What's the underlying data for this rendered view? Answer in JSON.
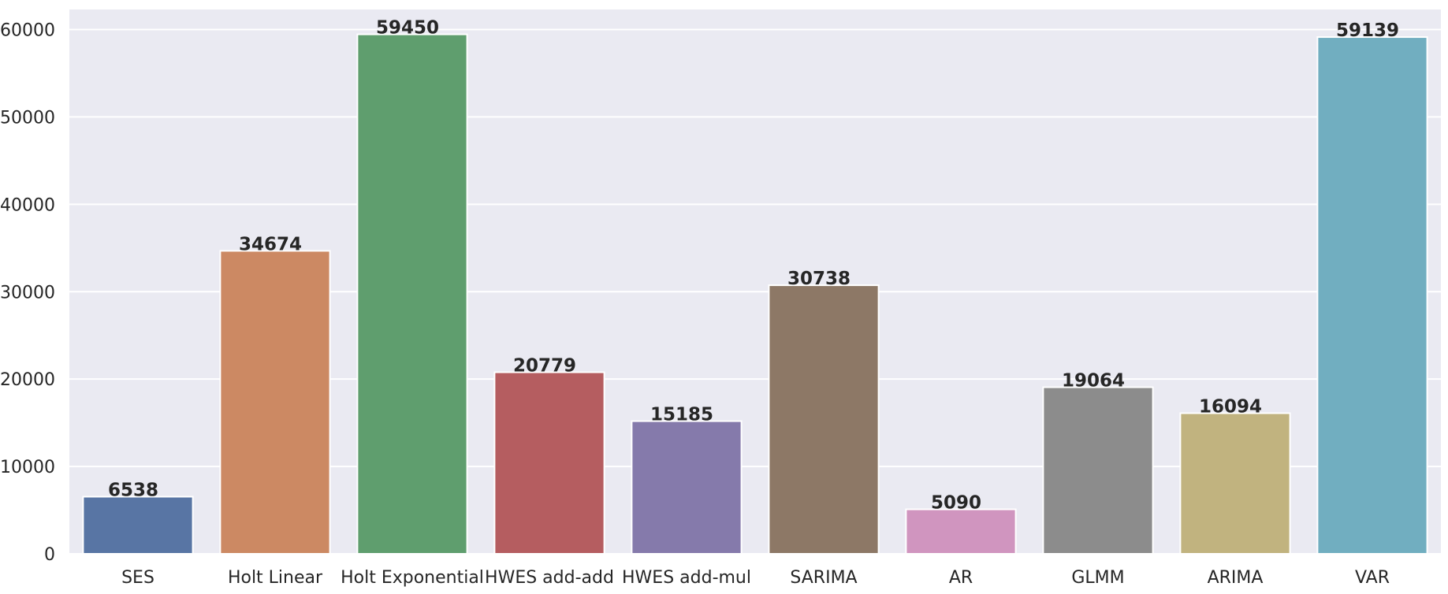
{
  "chart_data": {
    "type": "bar",
    "title": "",
    "xlabel": "",
    "ylabel": "",
    "categories": [
      "SES",
      "Holt Linear",
      "Holt Exponential",
      "HWES add-add",
      "HWES add-mul",
      "SARIMA",
      "AR",
      "GLMM",
      "ARIMA",
      "VAR"
    ],
    "values": [
      6538,
      34674,
      59450,
      20779,
      15185,
      30738,
      5090,
      19064,
      16094,
      59139
    ],
    "data_labels": [
      "6538",
      "34674",
      "59450",
      "20779",
      "15185",
      "30738",
      "5090",
      "19064",
      "16094",
      "59139"
    ],
    "colors": [
      "#5875a4",
      "#cc8963",
      "#5f9e6e",
      "#b55d60",
      "#857aab",
      "#8d7866",
      "#d095bf",
      "#8c8c8c",
      "#c1b37f",
      "#71aec0"
    ],
    "ylim": [
      0,
      62300
    ],
    "yticks": [
      0,
      10000,
      20000,
      30000,
      40000,
      50000,
      60000
    ],
    "ytick_labels": [
      "0",
      "10000",
      "20000",
      "30000",
      "40000",
      "50000",
      "60000"
    ],
    "grid": true,
    "grid_color": "#ffffff",
    "background_color": "#eaeaf2",
    "label_color": "#262626",
    "legend": "none"
  }
}
